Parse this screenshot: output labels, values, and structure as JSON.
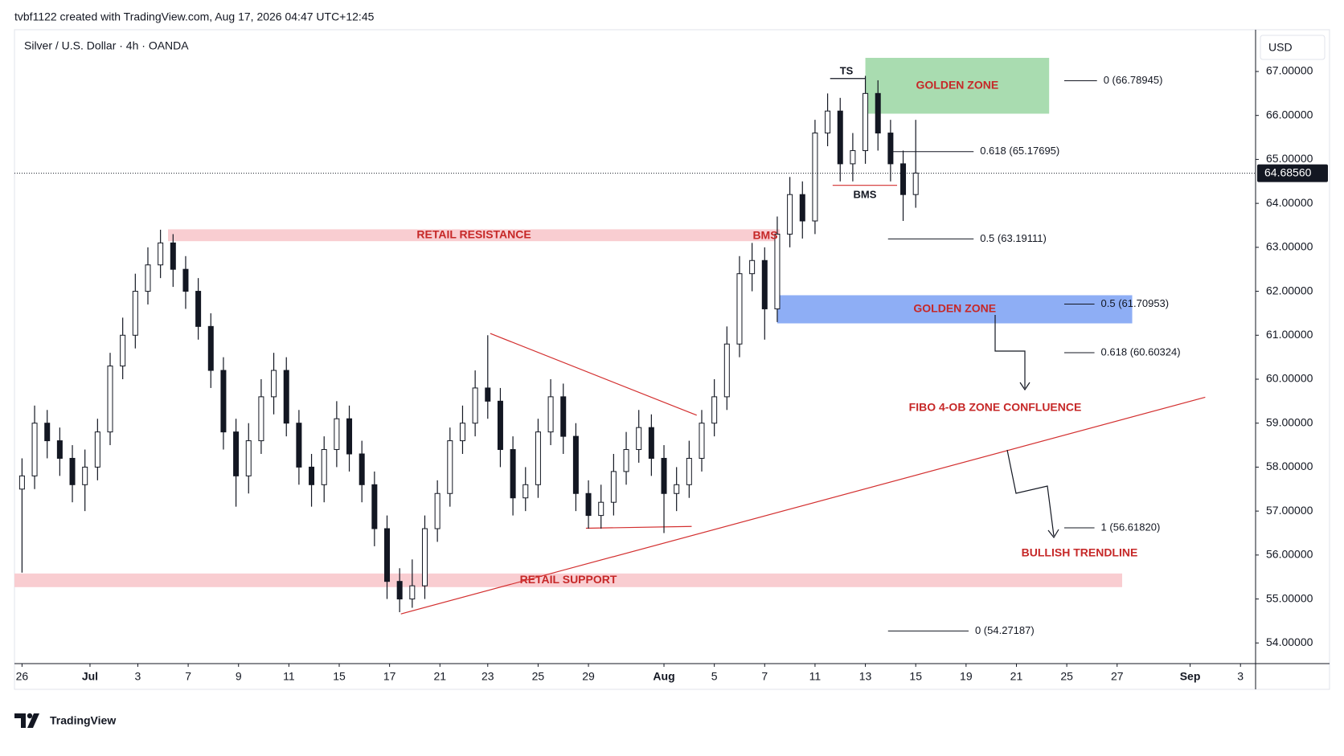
{
  "attribution": "tvbf1122 created with TradingView.com, Aug 17, 2026 04:47 UTC+12:45",
  "brand": "TradingView",
  "chart_data": {
    "type": "candlestick",
    "title": "Silver / U.S. Dollar · 4h · OANDA",
    "currency": "USD",
    "color": "#131722",
    "x": [
      0,
      0.5,
      1,
      1.5,
      2,
      2.5,
      3,
      3.5,
      4,
      4.5,
      5,
      5.5,
      6,
      6.5,
      7,
      7.5,
      8,
      8.5,
      9,
      9.5,
      10,
      10.5,
      11,
      11.5,
      12,
      12.5,
      13,
      13.5,
      14,
      14.5,
      15,
      15.5,
      16,
      16.5,
      17,
      17.5,
      18,
      18.5,
      19,
      19.5,
      20,
      20.5,
      21,
      21.5,
      22,
      22.5,
      23,
      23.5,
      24,
      24.5,
      25,
      25.5,
      26,
      26.5,
      27,
      27.5,
      28,
      28.5,
      29,
      29.5,
      30,
      30.5,
      31,
      31.5,
      32,
      32.5,
      33,
      33.5,
      34,
      34.5,
      35,
      35.5
    ],
    "open": [
      57.5,
      57.8,
      59.0,
      58.6,
      58.2,
      57.6,
      58.0,
      58.8,
      60.3,
      61.0,
      62.0,
      62.6,
      63.1,
      62.5,
      62.0,
      61.2,
      60.2,
      58.8,
      57.8,
      58.6,
      59.6,
      60.2,
      59.0,
      58.0,
      57.6,
      58.4,
      59.1,
      58.3,
      57.6,
      56.6,
      55.4,
      55.0,
      55.3,
      56.6,
      57.4,
      58.6,
      59.0,
      59.8,
      59.5,
      58.4,
      57.3,
      57.6,
      58.8,
      59.6,
      58.7,
      57.4,
      56.9,
      57.2,
      57.9,
      58.4,
      58.9,
      58.2,
      57.4,
      57.6,
      58.2,
      59.0,
      59.6,
      60.8,
      62.4,
      62.7,
      61.6,
      63.3,
      64.2,
      63.6,
      65.6,
      66.1,
      64.9,
      65.2,
      66.5,
      65.6,
      64.9,
      64.2
    ],
    "high": [
      58.2,
      59.4,
      59.3,
      58.9,
      58.5,
      58.4,
      59.1,
      60.6,
      61.4,
      62.4,
      63.0,
      63.4,
      63.3,
      62.8,
      62.3,
      61.5,
      60.5,
      59.1,
      59.0,
      60.0,
      60.6,
      60.5,
      59.3,
      58.3,
      58.7,
      59.5,
      59.4,
      58.6,
      57.9,
      56.9,
      55.7,
      55.9,
      56.9,
      57.7,
      58.9,
      59.4,
      60.2,
      61.0,
      59.8,
      58.7,
      58.0,
      59.1,
      60.0,
      59.9,
      59.0,
      57.7,
      57.6,
      58.3,
      58.8,
      59.3,
      59.2,
      58.5,
      58.0,
      58.6,
      59.3,
      60.0,
      61.2,
      62.8,
      63.1,
      63.0,
      63.7,
      64.6,
      64.5,
      65.9,
      66.5,
      66.4,
      65.6,
      66.9,
      66.8,
      65.9,
      65.2,
      65.9
    ],
    "low": [
      55.6,
      57.5,
      58.2,
      57.8,
      57.2,
      57.0,
      57.7,
      58.5,
      60.0,
      60.7,
      61.7,
      62.3,
      62.1,
      61.6,
      60.9,
      59.8,
      58.4,
      57.1,
      57.4,
      58.3,
      59.2,
      58.7,
      57.6,
      57.1,
      57.2,
      58.0,
      57.9,
      57.2,
      56.2,
      55.0,
      54.7,
      54.8,
      55.0,
      56.3,
      57.1,
      58.3,
      58.7,
      59.1,
      58.0,
      56.9,
      57.0,
      57.3,
      58.5,
      58.3,
      57.0,
      56.6,
      56.6,
      56.9,
      57.6,
      58.1,
      57.8,
      56.5,
      57.0,
      57.3,
      57.9,
      58.7,
      59.3,
      60.5,
      62.0,
      60.9,
      61.3,
      63.0,
      63.2,
      63.3,
      65.3,
      64.5,
      64.5,
      64.9,
      65.2,
      64.5,
      63.6,
      63.9
    ],
    "close": [
      57.8,
      59.0,
      58.6,
      58.2,
      57.6,
      58.0,
      58.8,
      60.3,
      61.0,
      62.0,
      62.6,
      63.1,
      62.5,
      62.0,
      61.2,
      60.2,
      58.8,
      57.8,
      58.6,
      59.6,
      60.2,
      59.0,
      58.0,
      57.6,
      58.4,
      59.1,
      58.3,
      57.6,
      56.6,
      55.4,
      55.0,
      55.3,
      56.6,
      57.4,
      58.6,
      59.0,
      59.8,
      59.5,
      58.4,
      57.3,
      57.6,
      58.8,
      59.6,
      58.7,
      57.4,
      56.9,
      57.2,
      57.9,
      58.4,
      58.9,
      58.2,
      57.4,
      57.6,
      58.2,
      59.0,
      59.6,
      60.8,
      62.4,
      62.7,
      61.6,
      63.3,
      64.2,
      63.6,
      65.6,
      66.1,
      64.9,
      65.2,
      66.5,
      65.6,
      64.9,
      64.2,
      64.69
    ],
    "xlim": [
      -0.3,
      49
    ],
    "xticks": [
      {
        "value": 0,
        "label": "26"
      },
      {
        "value": 2.7,
        "label": "Jul"
      },
      {
        "value": 4.6,
        "label": "3"
      },
      {
        "value": 6.6,
        "label": "7"
      },
      {
        "value": 8.6,
        "label": "9"
      },
      {
        "value": 10.6,
        "label": "11"
      },
      {
        "value": 12.6,
        "label": "15"
      },
      {
        "value": 14.6,
        "label": "17"
      },
      {
        "value": 16.6,
        "label": "21"
      },
      {
        "value": 18.5,
        "label": "23"
      },
      {
        "value": 20.5,
        "label": "25"
      },
      {
        "value": 22.5,
        "label": "29"
      },
      {
        "value": 25.5,
        "label": "Aug"
      },
      {
        "value": 27.5,
        "label": "5"
      },
      {
        "value": 29.5,
        "label": "7"
      },
      {
        "value": 31.5,
        "label": "11"
      },
      {
        "value": 33.5,
        "label": "13"
      },
      {
        "value": 35.5,
        "label": "15"
      },
      {
        "value": 37.5,
        "label": "19"
      },
      {
        "value": 39.5,
        "label": "21"
      },
      {
        "value": 41.5,
        "label": "25"
      },
      {
        "value": 43.5,
        "label": "27"
      },
      {
        "value": 46.4,
        "label": "Sep"
      },
      {
        "value": 48.4,
        "label": "3"
      }
    ],
    "ylim": [
      53.53,
      67.95
    ],
    "yticks": [
      {
        "value": 54,
        "label": "54.00000"
      },
      {
        "value": 55,
        "label": "55.00000"
      },
      {
        "value": 56,
        "label": "56.00000"
      },
      {
        "value": 57,
        "label": "57.00000"
      },
      {
        "value": 58,
        "label": "58.00000"
      },
      {
        "value": 59,
        "label": "59.00000"
      },
      {
        "value": 60,
        "label": "60.00000"
      },
      {
        "value": 61,
        "label": "61.00000"
      },
      {
        "value": 62,
        "label": "62.00000"
      },
      {
        "value": 63,
        "label": "63.00000"
      },
      {
        "value": 64,
        "label": "64.00000"
      },
      {
        "value": 65,
        "label": "65.00000"
      },
      {
        "value": 66,
        "label": "66.00000"
      },
      {
        "value": 67,
        "label": "67.00000"
      }
    ],
    "grid": false,
    "last_price": {
      "value": 64.6856,
      "label": "64.68560"
    },
    "zones": [
      {
        "label": "RETAIL RESISTANCE",
        "x": [
          5.8,
          30.1
        ],
        "y": [
          63.14,
          63.41
        ],
        "color": "#f9cdd1"
      },
      {
        "label": "RETAIL SUPPORT",
        "x": [
          -0.3,
          43.7
        ],
        "y": [
          55.27,
          55.58
        ],
        "color": "#f9cdd1"
      },
      {
        "label": "GOLDEN ZONE",
        "x": [
          33.5,
          40.8
        ],
        "y": [
          66.04,
          67.31
        ],
        "color": "#a9dcb0"
      },
      {
        "label": "GOLDEN ZONE",
        "x": [
          30.0,
          44.1
        ],
        "y": [
          61.27,
          61.91
        ],
        "color": "#8eaef5"
      }
    ],
    "lines": [
      {
        "x": [
          15.05,
          47.0
        ],
        "y": [
          54.66,
          59.59
        ],
        "color": "#d32f2f"
      },
      {
        "x": [
          18.6,
          26.8
        ],
        "y": [
          61.04,
          59.18
        ],
        "color": "#d32f2f"
      },
      {
        "x": [
          22.4,
          26.6
        ],
        "y": [
          56.61,
          56.65
        ],
        "color": "#d32f2f"
      },
      {
        "x": [
          32.2,
          34.76
        ],
        "y": [
          64.41,
          64.41
        ],
        "color": "#d32f2f"
      },
      {
        "x": [
          32.1,
          33.5
        ],
        "y": [
          66.84,
          66.84
        ],
        "color": "#131722"
      }
    ],
    "fibs": [
      {
        "label": "0 (66.78945)",
        "value": 66.78945,
        "x": [
          41.4,
          42.7
        ]
      },
      {
        "label": "0.618 (65.17695)",
        "value": 65.17695,
        "x": [
          34.5,
          37.8
        ]
      },
      {
        "label": "0.5 (63.19111)",
        "value": 63.19111,
        "x": [
          34.4,
          37.8
        ]
      },
      {
        "label": "0.5 (61.70953)",
        "value": 61.70953,
        "x": [
          41.4,
          42.6
        ]
      },
      {
        "label": "0.618 (60.60324)",
        "value": 60.60324,
        "x": [
          41.4,
          42.6
        ]
      },
      {
        "label": "1 (56.61820)",
        "value": 56.6182,
        "x": [
          41.4,
          42.6
        ]
      },
      {
        "label": "0 (54.27187)",
        "value": 54.27187,
        "x": [
          34.4,
          37.6
        ]
      }
    ],
    "annotations": [
      {
        "text": "TS"
      },
      {
        "text": "BMS"
      },
      {
        "text": "BMS"
      },
      {
        "text": "FIBO 4-OB ZONE CONFLUENCE"
      },
      {
        "text": "BULLISH TRENDLINE"
      }
    ]
  }
}
